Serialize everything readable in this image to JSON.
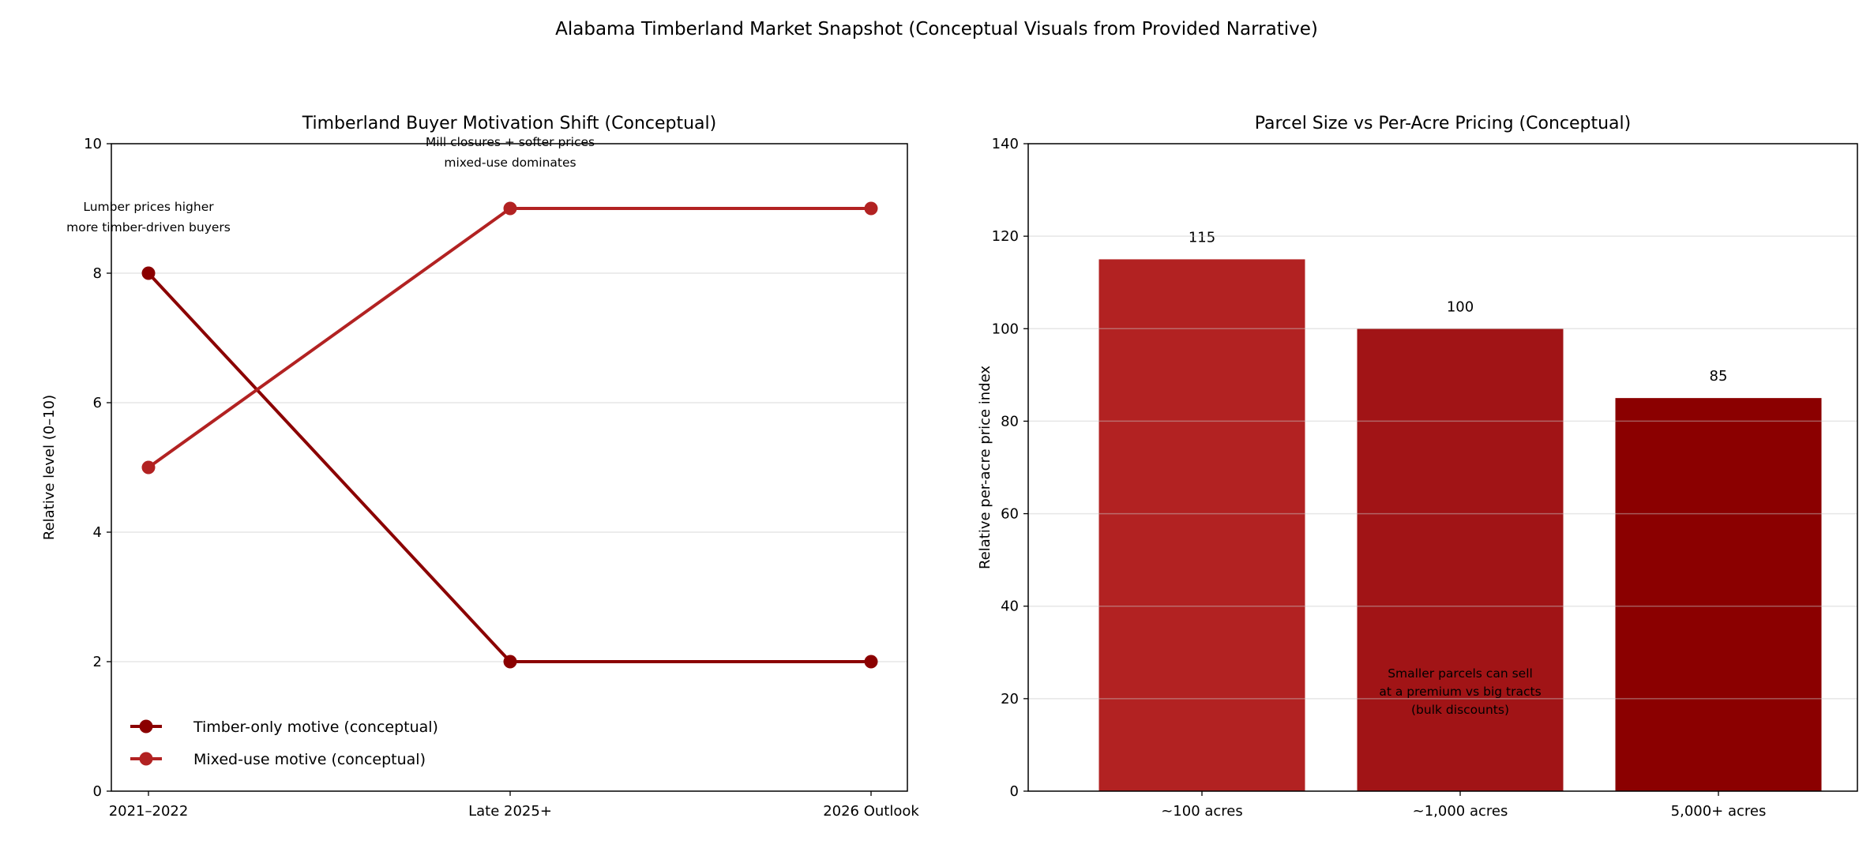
{
  "suptitle": "Alabama Timberland Market Snapshot (Conceptual Visuals from Provided Narrative)",
  "chart_data": [
    {
      "type": "line",
      "title": "Timberland Buyer Motivation Shift (Conceptual)",
      "xlabel": "",
      "ylabel": "Relative level (0–10)",
      "categories": [
        "2021–2022",
        "Late 2025+",
        "2026 Outlook"
      ],
      "ylim": [
        0,
        10
      ],
      "yticks": [
        0,
        2,
        4,
        6,
        8,
        10
      ],
      "grid": "y",
      "legend": "lower-left",
      "series": [
        {
          "name": "Timber-only motive (conceptual)",
          "values": [
            8,
            2,
            2
          ],
          "color": "#8b0000"
        },
        {
          "name": "Mixed-use motive (conceptual)",
          "values": [
            5,
            9,
            9
          ],
          "color": "#b22222"
        }
      ],
      "annotations": [
        {
          "lines": [
            "Lumber prices higher",
            "more timber-driven buyers"
          ],
          "x": "2021–2022",
          "y": 8.7
        },
        {
          "lines": [
            "Mill closures + softer prices",
            "mixed-use dominates"
          ],
          "x": "Late 2025+",
          "y": 9.9
        }
      ]
    },
    {
      "type": "bar",
      "title": "Parcel Size vs Per-Acre Pricing (Conceptual)",
      "xlabel": "",
      "ylabel": "Relative per-acre price index",
      "categories": [
        "~100 acres",
        "~1,000 acres",
        "5,000+ acres"
      ],
      "values": [
        115,
        100,
        85
      ],
      "data_labels": [
        "115",
        "100",
        "85"
      ],
      "colors": [
        "#b22222",
        "#a11416",
        "#8b0000"
      ],
      "ylim": [
        0,
        140
      ],
      "yticks": [
        0,
        20,
        40,
        60,
        80,
        100,
        120,
        140
      ],
      "grid": "y",
      "annotations": [
        {
          "lines": [
            "Smaller parcels can sell",
            "at a premium vs big tracts",
            "(bulk discounts)"
          ],
          "x": "~1,000 acres",
          "y": 20
        }
      ]
    }
  ]
}
